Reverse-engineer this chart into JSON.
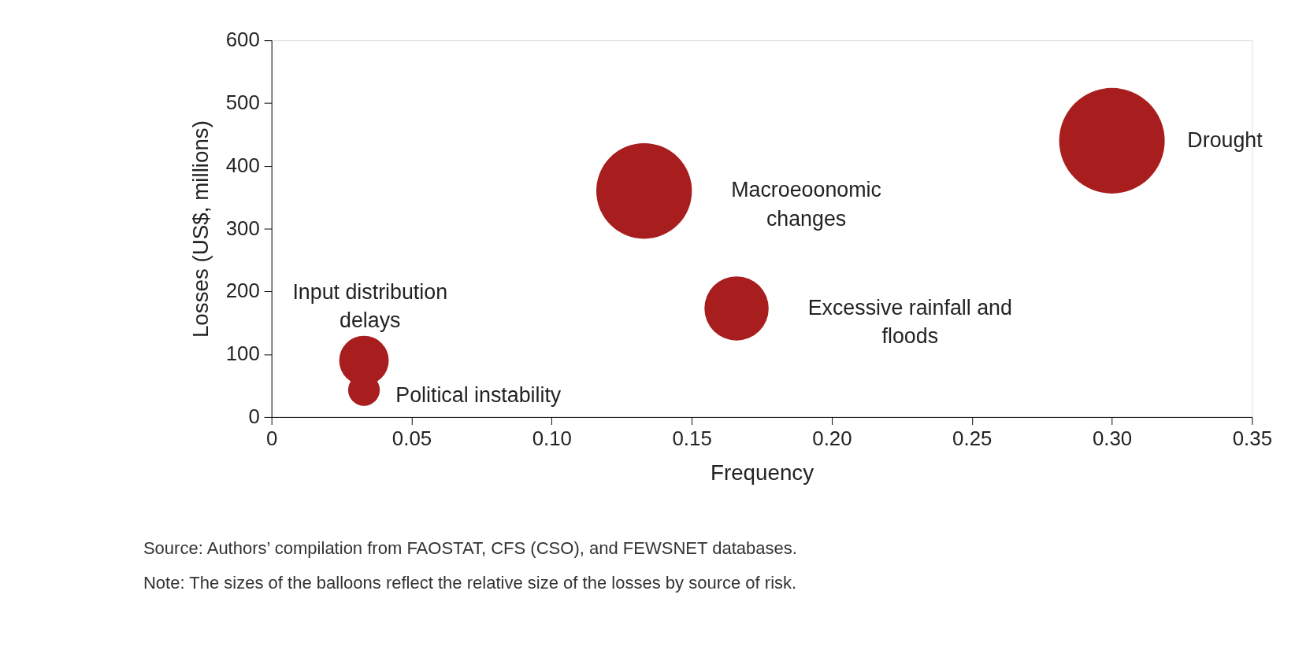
{
  "chart_data": {
    "type": "bubble",
    "xlabel": "Frequency",
    "ylabel": "Losses (US$, millions)",
    "xlim": [
      0,
      0.35
    ],
    "xticks": [
      0,
      0.05,
      {
        "value": 0.1,
        "label": "0.10"
      },
      0.15,
      {
        "value": 0.2,
        "label": "0.20"
      },
      0.25,
      {
        "value": 0.3,
        "label": "0.30"
      },
      0.35
    ],
    "ylim": [
      0,
      600
    ],
    "yticks": [
      0,
      100,
      200,
      300,
      400,
      500,
      600
    ],
    "grid": false,
    "legend": false,
    "series": [
      {
        "name": "Input distribution\ndelays",
        "color": "#a81e1e",
        "x": [
          0.033
        ],
        "values": [
          90
        ],
        "sizes": [
          0.22
        ]
      },
      {
        "name": "Political instability",
        "color": "#a81e1e",
        "x": [
          0.033
        ],
        "values": [
          43
        ],
        "sizes": [
          0.09
        ]
      },
      {
        "name": "Macroeoonomic\nchanges",
        "color": "#a81e1e",
        "x": [
          0.133
        ],
        "values": [
          360
        ],
        "sizes": [
          0.82
        ]
      },
      {
        "name": "Excessive rainfall and\nfloods",
        "color": "#a81e1e",
        "x": [
          0.166
        ],
        "values": [
          173
        ],
        "sizes": [
          0.37
        ]
      },
      {
        "name": "Drought",
        "color": "#a81e1e",
        "x": [
          0.3
        ],
        "values": [
          440
        ],
        "sizes": [
          1
        ]
      }
    ],
    "annotations": [
      "Source: Authors’ compilation from FAOSTAT, CFS (CSO), and FEWSNET databases.",
      "Note: The sizes of the balloons reflect the relative size of the losses by source of risk."
    ]
  }
}
